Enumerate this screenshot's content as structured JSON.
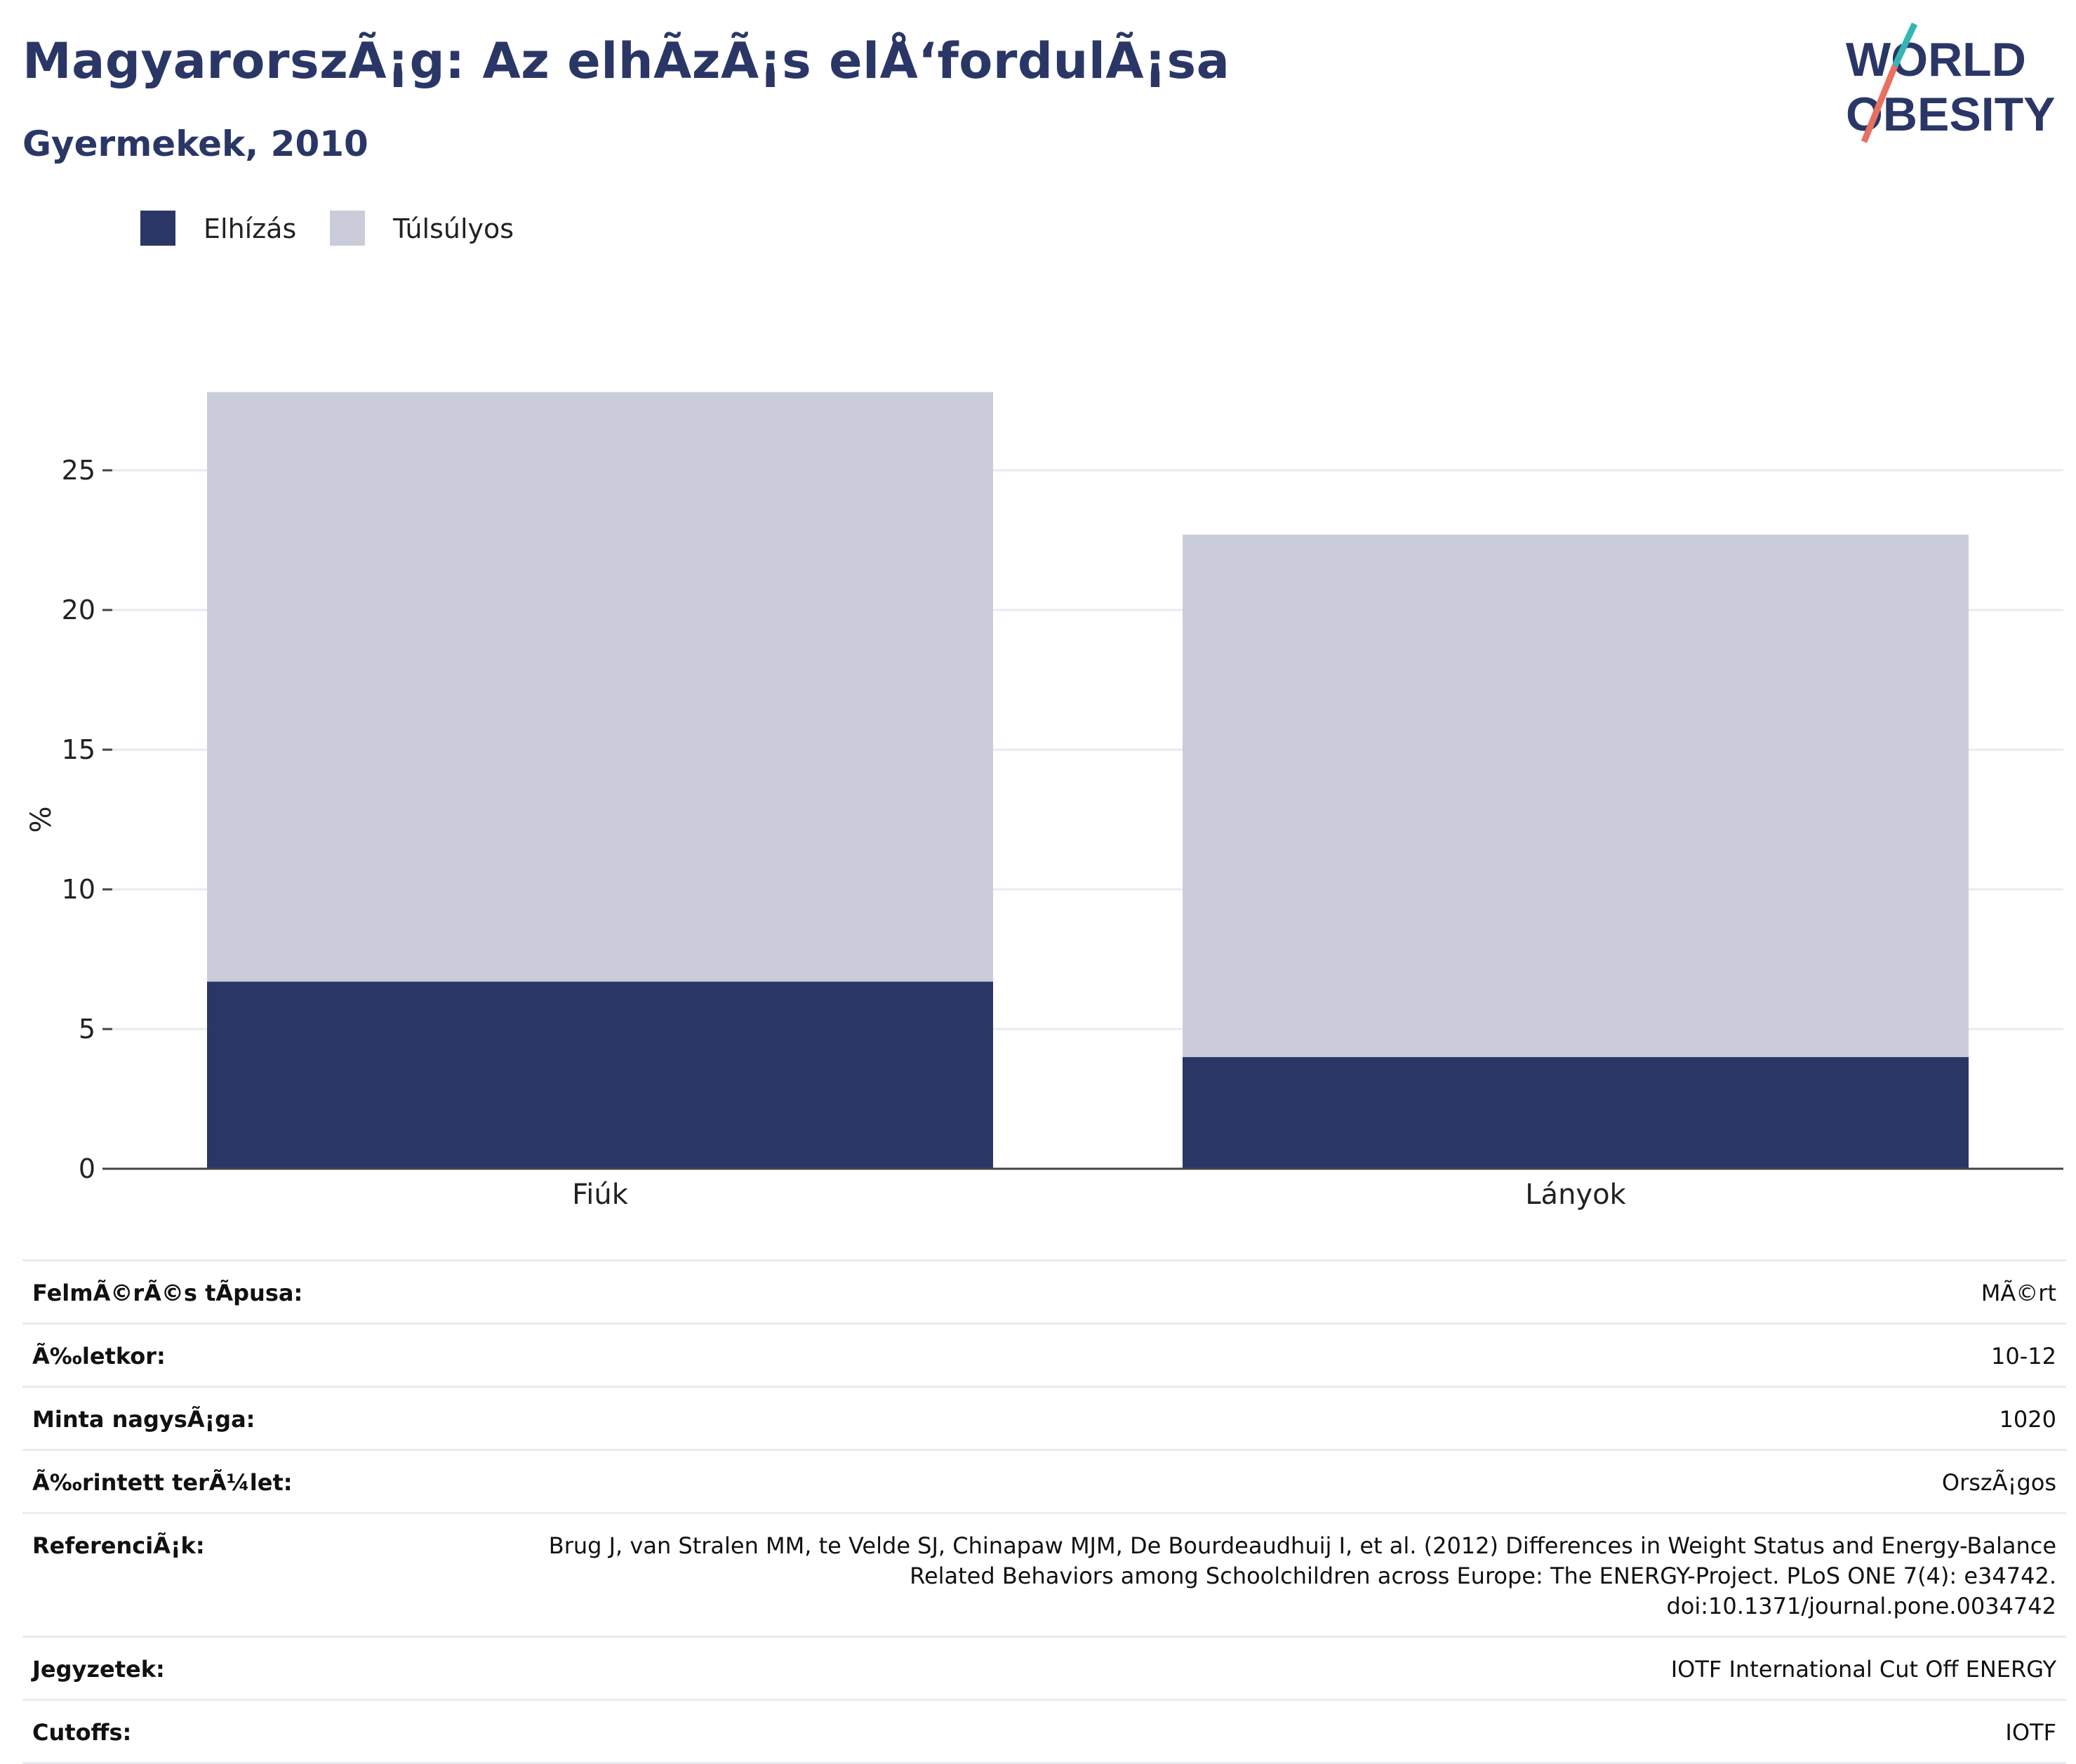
{
  "header": {
    "title": "MagyarorszÃ¡g: Az elhÃ­zÃ¡s elÅ‘fordulÃ¡sa",
    "subtitle": "Gyermekek, 2010"
  },
  "logo": {
    "line1": "WORLD",
    "line2": "OBESITY",
    "colors": {
      "text": "#2a3766",
      "slash_top": "#35b6b4",
      "slash_bottom": "#e8705f"
    }
  },
  "colors": {
    "obese": "#2a3766",
    "overweight": "#cacdd9",
    "grid": "#e9ebf1",
    "axis": "#444444"
  },
  "chart_data": {
    "type": "bar",
    "stacked": true,
    "categories": [
      "Fiúk",
      "Lányok"
    ],
    "series": [
      {
        "name": "Elhízás",
        "values": [
          6.7,
          4.0
        ]
      },
      {
        "name": "Túlsúlyos",
        "values": [
          21.1,
          18.7
        ]
      }
    ],
    "totals": [
      27.8,
      22.7
    ],
    "ylabel": "%",
    "ylim": [
      0,
      28
    ],
    "yticks": [
      0,
      5,
      10,
      15,
      20,
      25
    ],
    "grid": true,
    "legend": "top-left"
  },
  "info": [
    {
      "label": "FelmÃ©rÃ©s tÃpusa:",
      "value": "MÃ©rt"
    },
    {
      "label": "Ã‰letkor:",
      "value": "10-12"
    },
    {
      "label": "Minta nagysÃ¡ga:",
      "value": "1020"
    },
    {
      "label": "Ã‰rintett terÃ¼let:",
      "value": "OrszÃ¡gos"
    },
    {
      "label": "ReferenciÃ¡k:",
      "value": "Brug J, van Stralen MM, te Velde SJ, Chinapaw MJM, De Bourdeaudhuij I, et al. (2012) Differences in Weight Status and Energy-Balance\nRelated Behaviors among Schoolchildren across Europe: The ENERGY-Project. PLoS ONE 7(4): e34742.\ndoi:10.1371/journal.pone.0034742"
    },
    {
      "label": "Jegyzetek:",
      "value": "IOTF International Cut Off ENERGY"
    },
    {
      "label": "Cutoffs:",
      "value": "IOTF"
    }
  ]
}
